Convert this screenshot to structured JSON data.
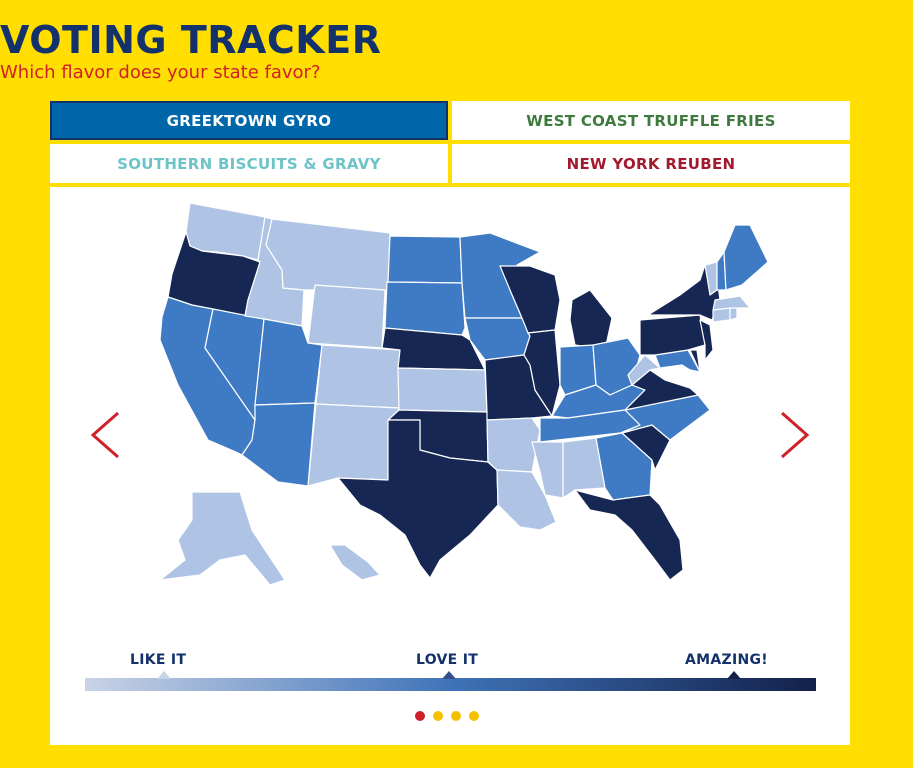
{
  "header": {
    "title": "VOTING TRACKER",
    "subtitle": "Which flavor does your state favor?"
  },
  "tabs": [
    {
      "label": "GREEKTOWN GYRO",
      "active": true,
      "color": "#FFFFFF"
    },
    {
      "label": "WEST COAST TRUFFLE FRIES",
      "active": false,
      "color": "#3E7A3E"
    },
    {
      "label": "SOUTHERN BISCUITS & GRAVY",
      "active": false,
      "color": "#6CC3C8"
    },
    {
      "label": "NEW YORK REUBEN",
      "active": false,
      "color": "#A3192D"
    }
  ],
  "legend": {
    "labels": [
      "LIKE IT",
      "LOVE IT",
      "AMAZING!"
    ],
    "gradient": [
      "#C9D3E6",
      "#3F73B8",
      "#13204A"
    ]
  },
  "colors": {
    "background": "#FFDE00",
    "title": "#13316B",
    "subtitle": "#D0202A",
    "like": "#AFC4E5",
    "love": "#3F7BC4",
    "amazing": "#172754",
    "arrow": "#D0202A",
    "dot_active": "#D0202A",
    "dot_inactive": "#F2C200"
  },
  "carousel": {
    "total": 4,
    "active": 0
  },
  "map": {
    "levels": {
      "like": "LIKE IT",
      "love": "LOVE IT",
      "amazing": "AMAZING!"
    },
    "states": {
      "WA": "like",
      "OR": "amazing",
      "CA": "love",
      "NV": "love",
      "ID": "like",
      "MT": "like",
      "WY": "like",
      "UT": "love",
      "AZ": "love",
      "CO": "like",
      "NM": "like",
      "ND": "love",
      "SD": "love",
      "NE": "amazing",
      "KS": "like",
      "OK": "amazing",
      "TX": "amazing",
      "MN": "love",
      "IA": "love",
      "MO": "amazing",
      "AR": "like",
      "LA": "like",
      "WI": "amazing",
      "IL": "amazing",
      "MI": "amazing",
      "IN": "love",
      "OH": "love",
      "KY": "love",
      "TN": "love",
      "MS": "like",
      "AL": "like",
      "GA": "love",
      "FL": "amazing",
      "SC": "amazing",
      "NC": "love",
      "VA": "amazing",
      "WV": "like",
      "MD": "love",
      "DE": "amazing",
      "PA": "amazing",
      "NJ": "amazing",
      "NY": "amazing",
      "CT": "like",
      "RI": "like",
      "MA": "like",
      "VT": "like",
      "NH": "love",
      "ME": "love",
      "AK": "like",
      "HI": "like"
    }
  }
}
